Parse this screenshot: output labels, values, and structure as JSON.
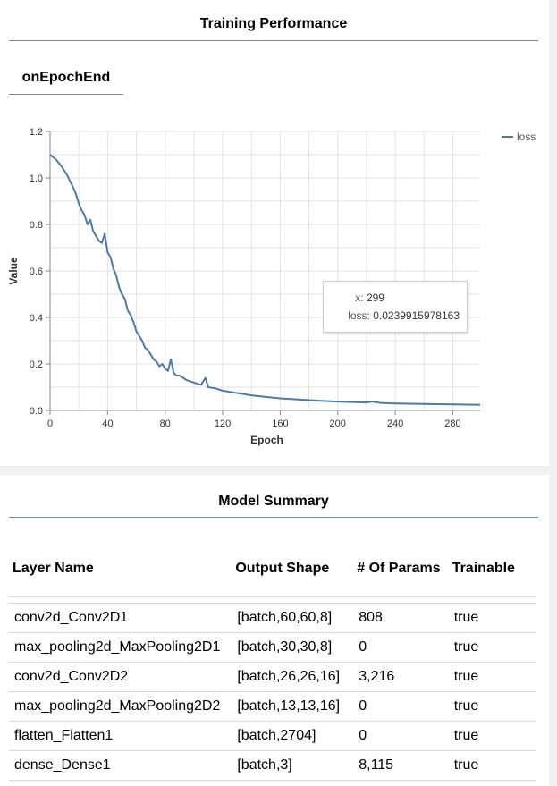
{
  "training": {
    "title": "Training Performance",
    "tab_label": "onEpochEnd"
  },
  "tooltip": {
    "x_label": "x:",
    "x_value": "299",
    "loss_label": "loss:",
    "loss_value": "0.0239915978163"
  },
  "chart_data": {
    "type": "line",
    "xlabel": "Epoch",
    "ylabel": "Value",
    "xlim": [
      0,
      299
    ],
    "ylim": [
      0,
      1.2
    ],
    "x_ticks": [
      "0",
      "40",
      "80",
      "120",
      "160",
      "200",
      "240",
      "280"
    ],
    "y_ticks": [
      "0.0",
      "0.2",
      "0.4",
      "0.6",
      "0.8",
      "1.0",
      "1.2"
    ],
    "grid": true,
    "legend_position": "top-right",
    "series": [
      {
        "name": "loss",
        "color": "#4e79a7",
        "x": [
          0,
          4,
          8,
          12,
          16,
          18,
          20,
          22,
          24,
          26,
          28,
          30,
          32,
          34,
          36,
          38,
          40,
          42,
          44,
          46,
          48,
          50,
          52,
          54,
          56,
          58,
          60,
          62,
          64,
          66,
          68,
          70,
          72,
          74,
          76,
          78,
          80,
          82,
          84,
          86,
          88,
          90,
          95,
          100,
          105,
          108,
          110,
          115,
          120,
          130,
          140,
          150,
          160,
          170,
          180,
          190,
          200,
          210,
          220,
          224,
          230,
          240,
          250,
          260,
          270,
          280,
          290,
          299
        ],
        "values": [
          1.1,
          1.08,
          1.05,
          1.01,
          0.96,
          0.93,
          0.89,
          0.86,
          0.84,
          0.8,
          0.82,
          0.77,
          0.75,
          0.73,
          0.72,
          0.76,
          0.68,
          0.66,
          0.61,
          0.58,
          0.53,
          0.5,
          0.48,
          0.43,
          0.41,
          0.38,
          0.34,
          0.32,
          0.3,
          0.27,
          0.26,
          0.24,
          0.22,
          0.21,
          0.19,
          0.2,
          0.18,
          0.17,
          0.22,
          0.16,
          0.15,
          0.15,
          0.13,
          0.12,
          0.11,
          0.14,
          0.1,
          0.095,
          0.085,
          0.075,
          0.065,
          0.058,
          0.052,
          0.048,
          0.044,
          0.041,
          0.038,
          0.036,
          0.034,
          0.038,
          0.032,
          0.03,
          0.029,
          0.028,
          0.027,
          0.026,
          0.025,
          0.024
        ]
      }
    ]
  },
  "summary": {
    "title": "Model Summary",
    "headers": {
      "layer": "Layer Name",
      "shape": "Output Shape",
      "params": "# Of Params",
      "trainable": "Trainable"
    },
    "rows": [
      {
        "name": "conv2d_Conv2D1",
        "shape": "[batch,60,60,8]",
        "params": "808",
        "trainable": "true"
      },
      {
        "name": "max_pooling2d_MaxPooling2D1",
        "shape": "[batch,30,30,8]",
        "params": "0",
        "trainable": "true"
      },
      {
        "name": "conv2d_Conv2D2",
        "shape": "[batch,26,26,16]",
        "params": "3,216",
        "trainable": "true"
      },
      {
        "name": "max_pooling2d_MaxPooling2D2",
        "shape": "[batch,13,13,16]",
        "params": "0",
        "trainable": "true"
      },
      {
        "name": "flatten_Flatten1",
        "shape": "[batch,2704]",
        "params": "0",
        "trainable": "true"
      },
      {
        "name": "dense_Dense1",
        "shape": "[batch,3]",
        "params": "8,115",
        "trainable": "true"
      }
    ]
  }
}
